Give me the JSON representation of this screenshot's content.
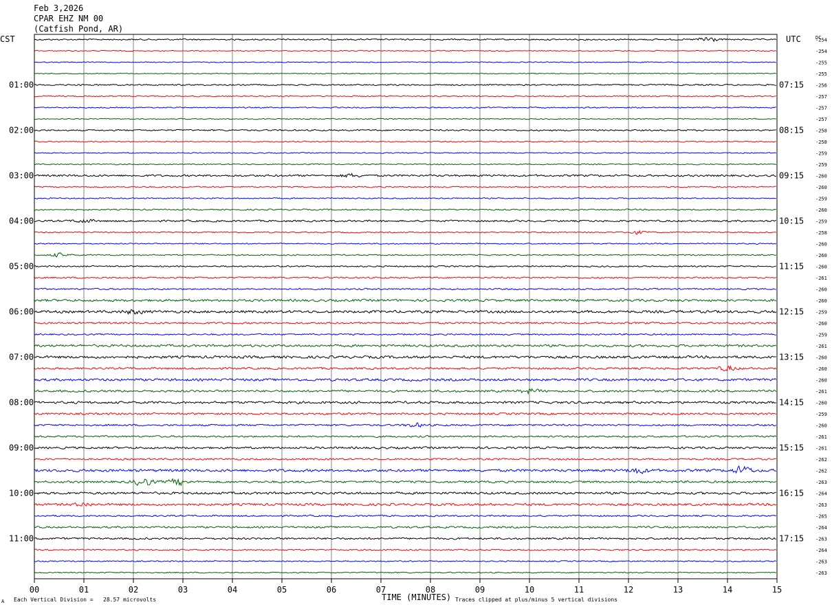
{
  "header": {
    "date": "Feb 3,2026",
    "station": "CPAR EHZ NM 00",
    "location": "(Catfish Pond, AR)"
  },
  "left_timezone": "CST",
  "right_timezone": "UTC",
  "dc_label": "DC",
  "footer": {
    "scale_note": "Each Vertical Division =   28.57 microvolts",
    "clip_note": "Traces clipped at plus/minus 5 vertical divisions",
    "corner_mark": "A"
  },
  "colors": {
    "cycle": [
      "#000000",
      "#ff0000",
      "#0000ff",
      "#006400"
    ],
    "grid": "#808080",
    "frame": "#000000"
  },
  "chart_data": {
    "type": "line",
    "title": "",
    "xlabel": "TIME (MINUTES)",
    "ylabel": "",
    "xlim": [
      0,
      15
    ],
    "x_ticks": [
      "00",
      "01",
      "02",
      "03",
      "04",
      "05",
      "06",
      "07",
      "08",
      "09",
      "10",
      "11",
      "12",
      "13",
      "14",
      "15"
    ],
    "grid": true,
    "left_hour_labels": [
      "01:00",
      "02:00",
      "03:00",
      "04:00",
      "05:00",
      "06:00",
      "07:00",
      "08:00",
      "09:00",
      "10:00",
      "11:00"
    ],
    "right_hour_labels": [
      "07:15",
      "08:15",
      "09:15",
      "10:15",
      "11:15",
      "12:15",
      "13:15",
      "14:15",
      "15:15",
      "16:15",
      "17:15"
    ],
    "trace_dc_offsets": [
      "-254",
      "-254",
      "-255",
      "-255",
      "-256",
      "-257",
      "-257",
      "-257",
      "-258",
      "-258",
      "-259",
      "-259",
      "-260",
      "-260",
      "-259",
      "-260",
      "-259",
      "-258",
      "-260",
      "-260",
      "-260",
      "-261",
      "-260",
      "-260",
      "-259",
      "-260",
      "-259",
      "-261",
      "-260",
      "-260",
      "-260",
      "-261",
      "-260",
      "-259",
      "-260",
      "-261",
      "-261",
      "-262",
      "-262",
      "-263",
      "-264",
      "-263",
      "-265",
      "-264",
      "-263",
      "-264",
      "-263",
      "-263"
    ],
    "trace_noise": [
      1.2,
      0.8,
      0.8,
      0.8,
      1.2,
      1.0,
      1.0,
      0.9,
      1.3,
      0.9,
      0.9,
      1.0,
      1.7,
      1.0,
      1.0,
      1.2,
      1.6,
      1.0,
      1.0,
      1.1,
      1.2,
      1.3,
      1.3,
      2.0,
      2.2,
      1.6,
      1.3,
      2.0,
      2.2,
      1.7,
      2.1,
      1.8,
      2.0,
      1.7,
      1.5,
      1.5,
      1.8,
      1.5,
      2.2,
      1.8,
      2.0,
      2.0,
      1.4,
      1.6,
      1.6,
      1.1,
      1.0,
      1.0
    ],
    "bursts": [
      {
        "trace": 0,
        "minute": 13.6,
        "amp": 5.0
      },
      {
        "trace": 12,
        "minute": 6.4,
        "amp": 2.5
      },
      {
        "trace": 16,
        "minute": 1.0,
        "amp": 2.5
      },
      {
        "trace": 17,
        "minute": 12.2,
        "amp": 2.5
      },
      {
        "trace": 19,
        "minute": 0.5,
        "amp": 3.0
      },
      {
        "trace": 24,
        "minute": 2.0,
        "amp": 3.0
      },
      {
        "trace": 29,
        "minute": 14.0,
        "amp": 3.5
      },
      {
        "trace": 31,
        "minute": 10.0,
        "amp": 3.5
      },
      {
        "trace": 34,
        "minute": 7.7,
        "amp": 3.0
      },
      {
        "trace": 38,
        "minute": 12.2,
        "amp": 4.0
      },
      {
        "trace": 38,
        "minute": 14.3,
        "amp": 6.0
      },
      {
        "trace": 39,
        "minute": 2.2,
        "amp": 6.0
      },
      {
        "trace": 39,
        "minute": 2.9,
        "amp": 5.0
      },
      {
        "trace": 41,
        "minute": 1.0,
        "amp": 2.5
      }
    ]
  }
}
